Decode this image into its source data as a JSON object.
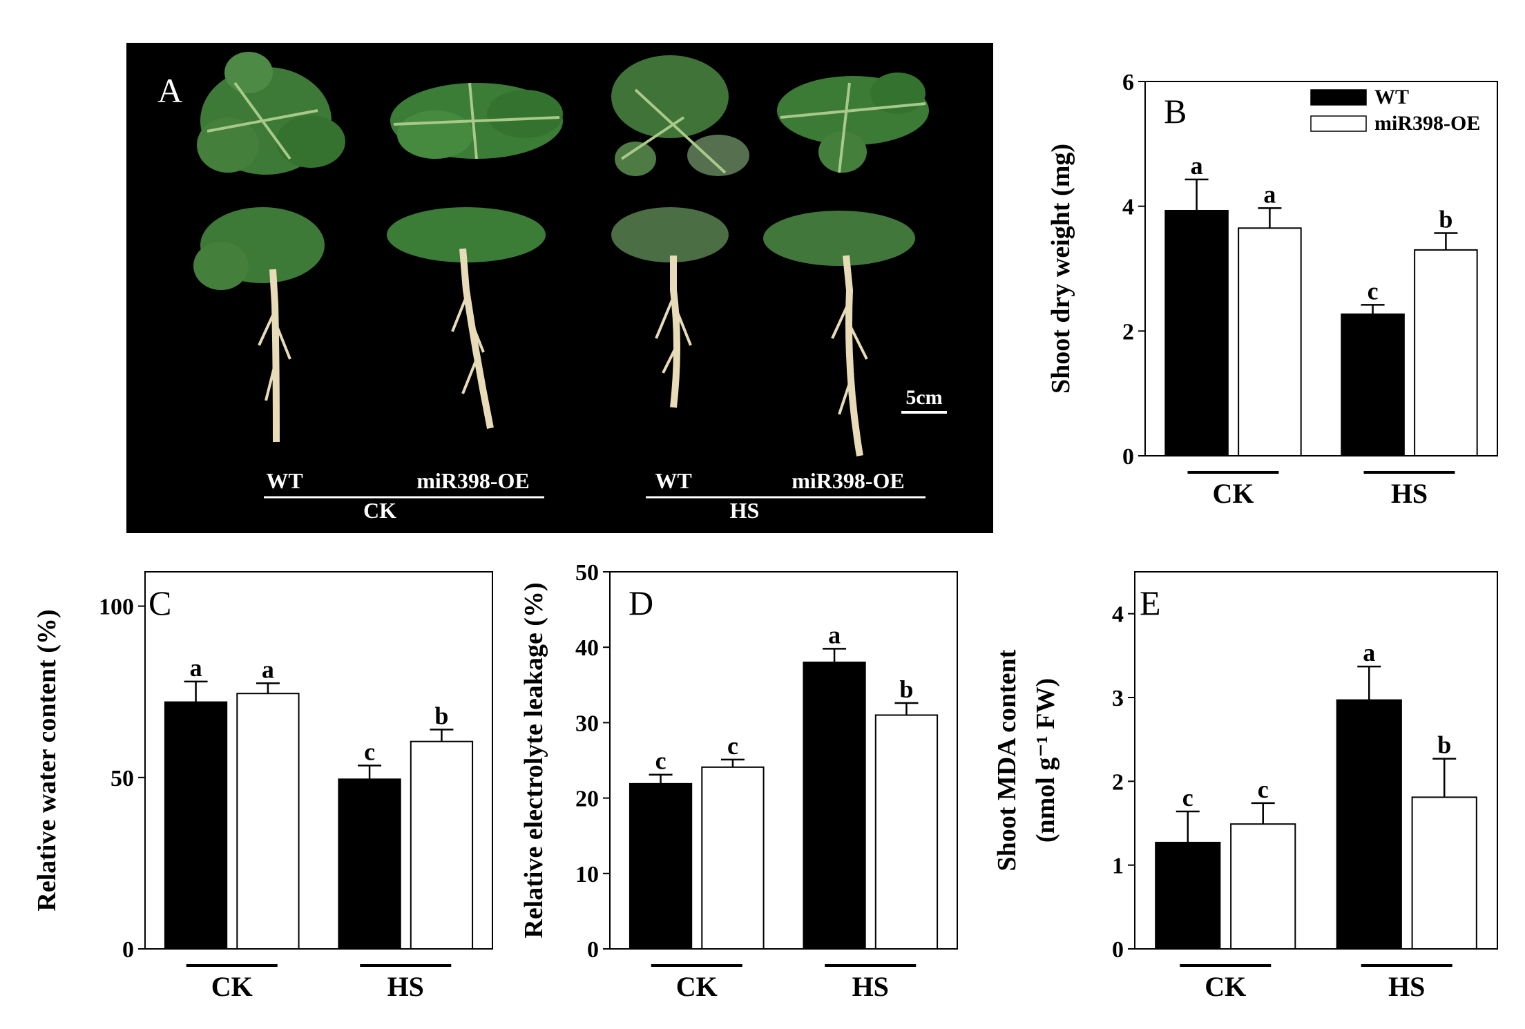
{
  "figure": {
    "panel_a": {
      "letter": "A",
      "scale_bar": "5cm",
      "labels": [
        "WT",
        "miR398-OE",
        "WT",
        "miR398-OE"
      ],
      "groups": [
        "CK",
        "HS"
      ],
      "colors": {
        "background": "#000000",
        "leaf": "#3f7a3a",
        "root": "#e8dcb8",
        "text": "#ffffff"
      }
    }
  },
  "chart_data": [
    {
      "id": "B",
      "type": "bar",
      "letter": "B",
      "ylabel": "Shoot dry weight (mg)",
      "ylabel_lines": [
        "Shoot dry weight (mg)"
      ],
      "ylim": [
        0,
        6
      ],
      "yticks": [
        0,
        2,
        4,
        6
      ],
      "categories": [
        "CK",
        "HS"
      ],
      "series": [
        {
          "name": "WT",
          "color": "#000000",
          "values": [
            3.93,
            2.27
          ],
          "errors": [
            0.5,
            0.15
          ],
          "letters": [
            "a",
            "c"
          ]
        },
        {
          "name": "miR398-OE",
          "color": "#ffffff",
          "values": [
            3.65,
            3.3
          ],
          "errors": [
            0.32,
            0.27
          ],
          "letters": [
            "a",
            "b"
          ]
        }
      ],
      "legend": {
        "position": "top-right",
        "entries": [
          "WT",
          "miR398-OE"
        ]
      },
      "grid": false
    },
    {
      "id": "C",
      "type": "bar",
      "letter": "C",
      "ylabel": "Relative water content (%)",
      "ylabel_lines": [
        "Relative water content (%)"
      ],
      "ylim": [
        0,
        110
      ],
      "yticks": [
        0,
        50,
        100
      ],
      "categories": [
        "CK",
        "HS"
      ],
      "series": [
        {
          "name": "WT",
          "color": "#000000",
          "values": [
            72,
            49.5
          ],
          "errors": [
            6,
            4
          ],
          "letters": [
            "a",
            "c"
          ]
        },
        {
          "name": "miR398-OE",
          "color": "#ffffff",
          "values": [
            74.5,
            60.5
          ],
          "errors": [
            3,
            3.5
          ],
          "letters": [
            "a",
            "b"
          ]
        }
      ],
      "grid": false
    },
    {
      "id": "D",
      "type": "bar",
      "letter": "D",
      "ylabel": "Relative electrolyte leakage (%)",
      "ylabel_lines": [
        "Relative electrolyte leakage (%)"
      ],
      "ylim": [
        0,
        50
      ],
      "yticks": [
        0,
        10,
        20,
        30,
        40,
        50
      ],
      "categories": [
        "CK",
        "HS"
      ],
      "series": [
        {
          "name": "WT",
          "color": "#000000",
          "values": [
            21.9,
            38
          ],
          "errors": [
            1.2,
            1.8
          ],
          "letters": [
            "c",
            "a"
          ]
        },
        {
          "name": "miR398-OE",
          "color": "#ffffff",
          "values": [
            24.1,
            31
          ],
          "errors": [
            1,
            1.6
          ],
          "letters": [
            "c",
            "b"
          ]
        }
      ],
      "grid": false
    },
    {
      "id": "E",
      "type": "bar",
      "letter": "E",
      "ylabel": "Shoot MDA content (nmol g⁻¹ FW)",
      "ylabel_lines": [
        "Shoot MDA content",
        "(nmol g⁻¹ FW)"
      ],
      "ylim": [
        0,
        4.5
      ],
      "yticks": [
        0,
        1,
        2,
        3,
        4
      ],
      "categories": [
        "CK",
        "HS"
      ],
      "series": [
        {
          "name": "WT",
          "color": "#000000",
          "values": [
            1.27,
            2.97
          ],
          "errors": [
            0.37,
            0.4
          ],
          "letters": [
            "c",
            "a"
          ]
        },
        {
          "name": "miR398-OE",
          "color": "#ffffff",
          "values": [
            1.49,
            1.81
          ],
          "errors": [
            0.25,
            0.46
          ],
          "letters": [
            "c",
            "b"
          ]
        }
      ],
      "grid": false
    }
  ]
}
